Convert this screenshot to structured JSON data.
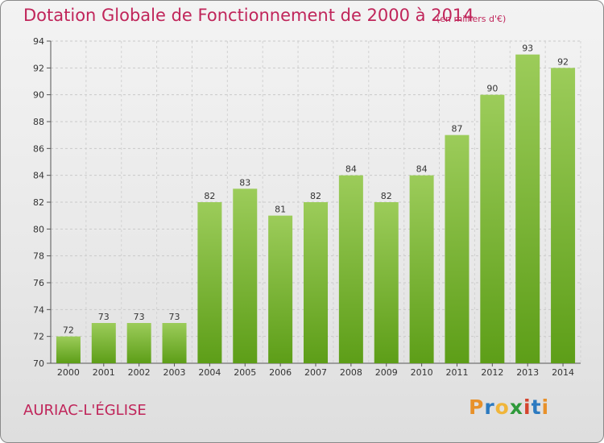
{
  "header": {
    "title": "Dotation Globale de Fonctionnement de 2000 à 2014",
    "subtitle": "(en milliers d'€)"
  },
  "footer": {
    "commune": "AURIAC-L'ÉGLISE",
    "logo_text": "Proxiti"
  },
  "colors": {
    "accent": "#c0255a",
    "bar_top": "#9ccc5a",
    "bar_bottom": "#5d9e18"
  },
  "chart_data": {
    "type": "bar",
    "title": "Dotation Globale de Fonctionnement de 2000 à 2014",
    "subtitle": "(en milliers d'€)",
    "categories": [
      "2000",
      "2001",
      "2002",
      "2003",
      "2004",
      "2005",
      "2006",
      "2007",
      "2008",
      "2009",
      "2010",
      "2011",
      "2012",
      "2013",
      "2014"
    ],
    "values": [
      72,
      73,
      73,
      73,
      82,
      83,
      81,
      82,
      84,
      82,
      84,
      87,
      90,
      93,
      92
    ],
    "ylim": [
      70,
      94
    ],
    "yticks": [
      70,
      72,
      74,
      76,
      78,
      80,
      82,
      84,
      86,
      88,
      90,
      92,
      94
    ],
    "grid": true,
    "data_labels": true
  }
}
